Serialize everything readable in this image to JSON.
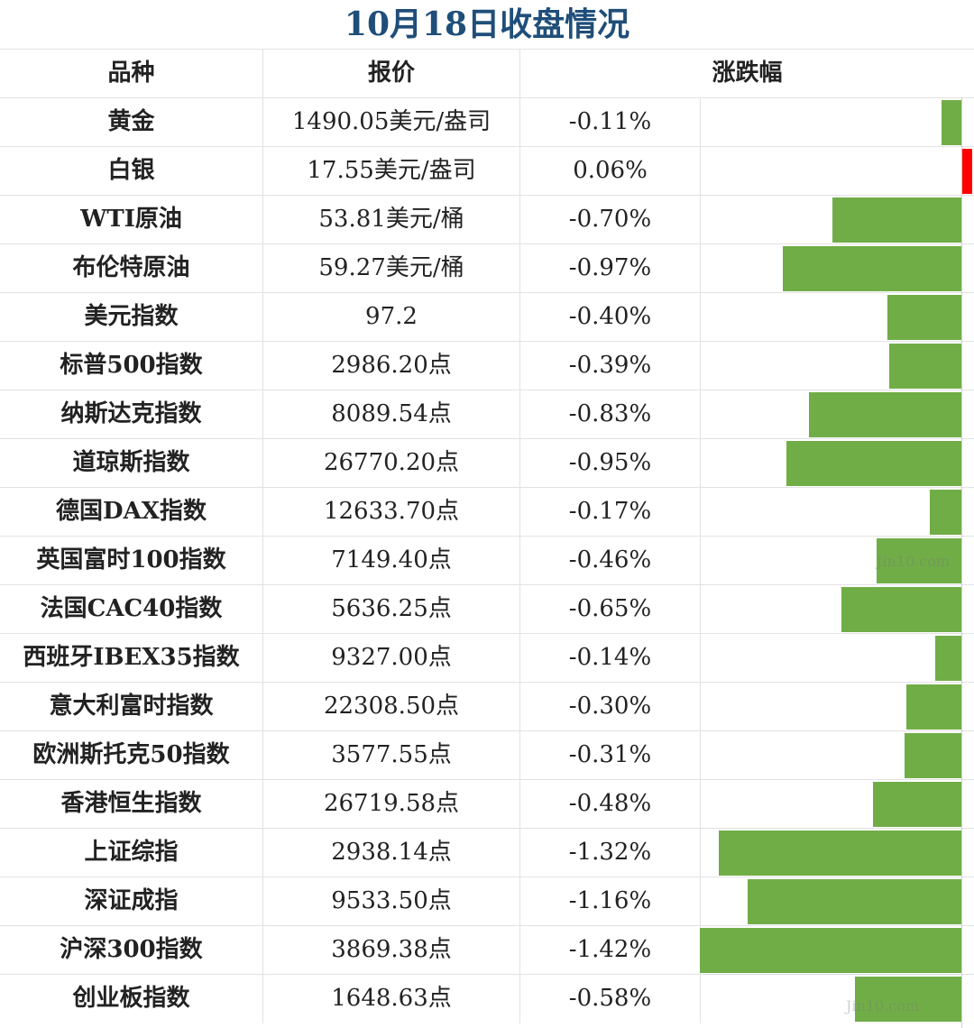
{
  "title": "10月18日收盘情况",
  "headers": {
    "name": "品种",
    "price": "报价",
    "change": "涨跌幅"
  },
  "colors": {
    "down": "#70ad47",
    "up": "#ff0000",
    "title": "#1f4e79"
  },
  "watermark": "Jin10.com",
  "chart_data": {
    "type": "bar",
    "categories": [
      "黄金",
      "白银",
      "WTI原油",
      "布伦特原油",
      "美元指数",
      "标普500指数",
      "纳斯达克指数",
      "道琼斯指数",
      "德国DAX指数",
      "英国富时100指数",
      "法国CAC40指数",
      "西班牙IBEX35指数",
      "意大利富时指数",
      "欧洲斯托克50指数",
      "香港恒生指数",
      "上证综指",
      "深证成指",
      "沪深300指数",
      "创业板指数"
    ],
    "values": [
      -0.11,
      0.06,
      -0.7,
      -0.97,
      -0.4,
      -0.39,
      -0.83,
      -0.95,
      -0.17,
      -0.46,
      -0.65,
      -0.14,
      -0.3,
      -0.31,
      -0.48,
      -1.32,
      -1.16,
      -1.42,
      -0.58
    ]
  },
  "rows": [
    {
      "name": "黄金",
      "price": "1490.05美元/盎司",
      "change": "-0.11%",
      "value": -0.11
    },
    {
      "name": "白银",
      "price": "17.55美元/盎司",
      "change": "0.06%",
      "value": 0.06
    },
    {
      "name": "WTI原油",
      "price": "53.81美元/桶",
      "change": "-0.70%",
      "value": -0.7
    },
    {
      "name": "布伦特原油",
      "price": "59.27美元/桶",
      "change": "-0.97%",
      "value": -0.97
    },
    {
      "name": "美元指数",
      "price": "97.2",
      "change": "-0.40%",
      "value": -0.4
    },
    {
      "name": "标普500指数",
      "price": "2986.20点",
      "change": "-0.39%",
      "value": -0.39
    },
    {
      "name": "纳斯达克指数",
      "price": "8089.54点",
      "change": "-0.83%",
      "value": -0.83
    },
    {
      "name": "道琼斯指数",
      "price": "26770.20点",
      "change": "-0.95%",
      "value": -0.95
    },
    {
      "name": "德国DAX指数",
      "price": "12633.70点",
      "change": "-0.17%",
      "value": -0.17
    },
    {
      "name": "英国富时100指数",
      "price": "7149.40点",
      "change": "-0.46%",
      "value": -0.46
    },
    {
      "name": "法国CAC40指数",
      "price": "5636.25点",
      "change": "-0.65%",
      "value": -0.65
    },
    {
      "name": "西班牙IBEX35指数",
      "price": "9327.00点",
      "change": "-0.14%",
      "value": -0.14
    },
    {
      "name": "意大利富时指数",
      "price": "22308.50点",
      "change": "-0.30%",
      "value": -0.3
    },
    {
      "name": "欧洲斯托克50指数",
      "price": "3577.55点",
      "change": "-0.31%",
      "value": -0.31
    },
    {
      "name": "香港恒生指数",
      "price": "26719.58点",
      "change": "-0.48%",
      "value": -0.48
    },
    {
      "name": "上证综指",
      "price": "2938.14点",
      "change": "-1.32%",
      "value": -1.32
    },
    {
      "name": "深证成指",
      "price": "9533.50点",
      "change": "-1.16%",
      "value": -1.16
    },
    {
      "name": "沪深300指数",
      "price": "3869.38点",
      "change": "-1.42%",
      "value": -1.42
    },
    {
      "name": "创业板指数",
      "price": "1648.63点",
      "change": "-0.58%",
      "value": -0.58
    }
  ]
}
